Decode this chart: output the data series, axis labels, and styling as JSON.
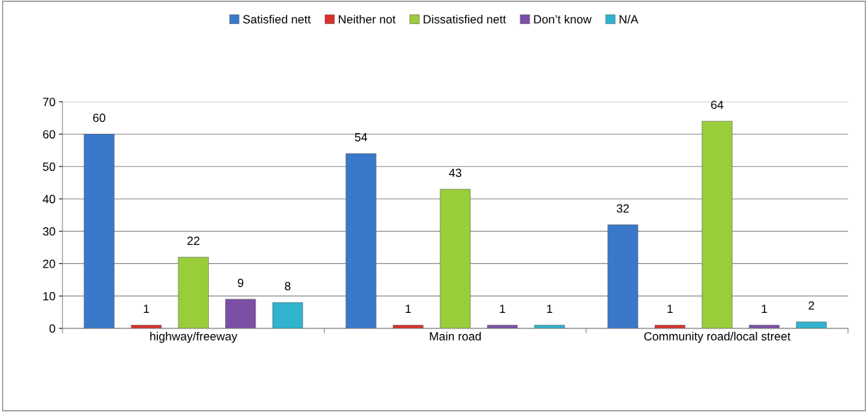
{
  "chart_data": {
    "type": "bar",
    "categories": [
      "highway/freeway",
      "Main road",
      "Community road/local street"
    ],
    "series": [
      {
        "name": "Satisfied nett",
        "color": "#3a78c9",
        "values": [
          60,
          54,
          32
        ]
      },
      {
        "name": "Neither not",
        "color": "#d9302a",
        "values": [
          1,
          1,
          1
        ]
      },
      {
        "name": "Dissatisfied nett",
        "color": "#9acd3a",
        "values": [
          22,
          43,
          64
        ]
      },
      {
        "name": "Don’t know",
        "color": "#7b4fa6",
        "values": [
          9,
          1,
          1
        ]
      },
      {
        "name": "N/A",
        "color": "#2fb3cf",
        "values": [
          8,
          1,
          2
        ]
      }
    ],
    "ylim": [
      0,
      70
    ],
    "yticks": [
      0,
      10,
      20,
      30,
      40,
      50,
      60,
      70
    ],
    "grid": "y",
    "legend": "top",
    "data_labels": true
  }
}
